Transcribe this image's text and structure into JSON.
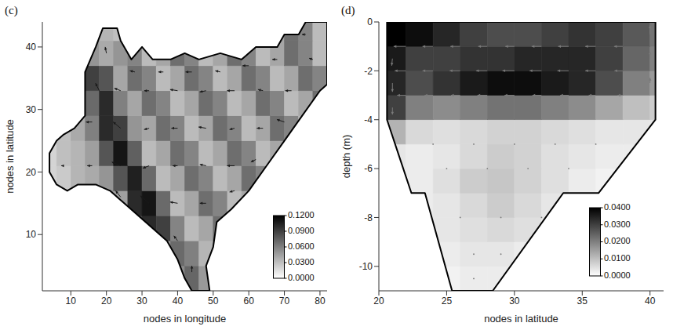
{
  "chart_data": [
    {
      "type": "heatmap",
      "title": "(c)",
      "xlabel": "nodes in longitude",
      "ylabel": "nodes in latitude",
      "xlim": [
        2,
        82
      ],
      "xticks": [
        10,
        20,
        30,
        40,
        50,
        60,
        70,
        80
      ],
      "ylim": [
        1,
        44
      ],
      "yticks": [
        10,
        20,
        30,
        40
      ],
      "boundary": {
        "x": [
          44,
          49,
          48,
          50,
          51,
          55,
          60,
          65,
          70,
          75,
          80,
          82,
          82,
          76,
          74,
          70,
          68,
          62,
          58,
          52,
          46,
          42,
          38,
          33,
          30,
          27,
          24,
          23,
          19,
          17,
          14,
          14,
          11,
          8,
          6,
          4,
          4,
          6,
          9,
          12,
          17,
          21,
          25,
          29,
          33,
          37,
          40,
          42
        ],
        "y": [
          1,
          1,
          5,
          8,
          12,
          14,
          17,
          21,
          25,
          29,
          33,
          34,
          44,
          44,
          42,
          42,
          40,
          40,
          38,
          39,
          38,
          39,
          38,
          38,
          40,
          38,
          41,
          43,
          43,
          40,
          36,
          29,
          27,
          26,
          25,
          23,
          20,
          18,
          17,
          18,
          18,
          17,
          15,
          13,
          11,
          9,
          6,
          3
        ]
      },
      "cells": {
        "x": [
          4,
          8,
          12,
          16,
          20,
          24,
          28,
          32,
          36,
          40,
          44,
          48,
          52,
          56,
          60,
          64,
          68,
          72,
          76,
          80
        ],
        "y": [
          3,
          7,
          11,
          15,
          19,
          23,
          27,
          31,
          35,
          39,
          43
        ],
        "values": [
          [
            null,
            null,
            null,
            null,
            null,
            null,
            null,
            null,
            null,
            0.055,
            0.072,
            0.048,
            null,
            null,
            null,
            null,
            null,
            null,
            null,
            null
          ],
          [
            null,
            null,
            null,
            null,
            null,
            null,
            null,
            null,
            0.045,
            0.07,
            0.06,
            0.035,
            0.05,
            null,
            null,
            null,
            null,
            null,
            null,
            null
          ],
          [
            null,
            null,
            null,
            null,
            null,
            null,
            0.08,
            0.1,
            0.09,
            0.058,
            0.032,
            0.042,
            0.068,
            null,
            null,
            null,
            null,
            null,
            null,
            null
          ],
          [
            null,
            null,
            null,
            null,
            0.058,
            0.045,
            0.1,
            0.11,
            0.07,
            0.032,
            0.042,
            0.068,
            0.058,
            0.032,
            0.042,
            null,
            null,
            null,
            null,
            null
          ],
          [
            0.02,
            0.025,
            0.035,
            0.04,
            0.05,
            0.08,
            0.105,
            0.07,
            0.032,
            0.042,
            0.068,
            0.058,
            0.032,
            0.042,
            0.068,
            0.058,
            null,
            null,
            null,
            null
          ],
          [
            0.02,
            0.03,
            0.035,
            0.045,
            0.08,
            0.11,
            0.075,
            0.032,
            0.042,
            0.068,
            0.058,
            0.032,
            0.042,
            0.068,
            0.058,
            0.032,
            0.042,
            null,
            null,
            null
          ],
          [
            null,
            0.03,
            0.04,
            0.06,
            0.1,
            0.09,
            0.05,
            0.042,
            0.068,
            0.058,
            0.032,
            0.042,
            0.068,
            0.058,
            0.032,
            0.042,
            0.068,
            0.058,
            0.032,
            null
          ],
          [
            null,
            null,
            null,
            0.07,
            0.1,
            0.06,
            0.042,
            0.068,
            0.058,
            0.032,
            0.042,
            0.068,
            0.058,
            0.032,
            0.042,
            0.068,
            0.058,
            0.032,
            0.042,
            0.068
          ],
          [
            null,
            null,
            null,
            0.09,
            0.08,
            0.042,
            0.068,
            0.058,
            0.032,
            0.042,
            0.068,
            0.058,
            0.032,
            0.042,
            0.068,
            0.058,
            0.032,
            0.042,
            0.068,
            0.058
          ],
          [
            null,
            null,
            null,
            0.05,
            0.04,
            0.05,
            0.058,
            0.032,
            0.042,
            0.068,
            0.058,
            0.032,
            0.042,
            0.068,
            0.058,
            0.032,
            0.042,
            0.068,
            0.058,
            0.032
          ],
          [
            null,
            null,
            null,
            null,
            0.035,
            0.03,
            null,
            null,
            null,
            null,
            null,
            null,
            null,
            null,
            null,
            null,
            0.042,
            0.068,
            0.058,
            0.032
          ]
        ]
      },
      "vectors": {
        "x": [
          44,
          40,
          24,
          32,
          40,
          48,
          56,
          8,
          16,
          24,
          32,
          40,
          48,
          56,
          62,
          16,
          24,
          32,
          40,
          48,
          56,
          64,
          70,
          18,
          24,
          32,
          40,
          48,
          56,
          64,
          72,
          20,
          28,
          36,
          44,
          52,
          60,
          68,
          78,
          76
        ],
        "y": [
          4,
          9,
          16,
          15,
          15,
          15,
          17,
          21,
          21,
          21,
          21,
          21,
          21,
          21,
          22,
          28,
          27,
          27,
          27,
          27,
          27,
          27,
          28,
          33,
          33,
          33,
          33,
          33,
          33,
          33,
          33,
          39,
          36,
          36,
          36,
          36,
          37,
          38,
          38,
          42
        ],
        "u": [
          0.0,
          -0.03,
          -0.04,
          -0.07,
          -0.06,
          -0.05,
          -0.04,
          -0.02,
          -0.04,
          -0.07,
          -0.05,
          -0.04,
          -0.05,
          -0.06,
          -0.04,
          -0.05,
          -0.06,
          -0.04,
          -0.05,
          -0.06,
          -0.04,
          -0.05,
          -0.06,
          -0.03,
          -0.05,
          -0.04,
          -0.06,
          -0.05,
          -0.06,
          -0.04,
          -0.05,
          -0.01,
          -0.04,
          -0.04,
          -0.05,
          -0.04,
          -0.05,
          -0.04,
          -0.03,
          -0.03
        ],
        "v": [
          0.05,
          0.04,
          0.05,
          0.06,
          0.01,
          0.0,
          -0.01,
          0.0,
          0.0,
          0.03,
          -0.02,
          0.0,
          0.01,
          0.0,
          -0.02,
          0.0,
          0.05,
          -0.01,
          0.0,
          0.01,
          -0.01,
          0.0,
          0.02,
          0.06,
          0.02,
          0.0,
          0.01,
          -0.01,
          0.0,
          0.01,
          0.0,
          0.05,
          0.01,
          0.0,
          0.0,
          0.01,
          0.0,
          0.0,
          0.01,
          0.0
        ]
      },
      "colorbar": {
        "range": [
          0,
          0.12
        ],
        "ticks": [
          {
            "value": 0,
            "label": "0.0000"
          },
          {
            "value": 0.03,
            "label": "0.0300"
          },
          {
            "value": 0.06,
            "label": "0.0600"
          },
          {
            "value": 0.09,
            "label": "0.0900"
          },
          {
            "value": 0.12,
            "label": "0.1200"
          }
        ]
      }
    },
    {
      "type": "heatmap",
      "title": "(d)",
      "xlabel": "nodes in latitude",
      "ylabel": "depth (m)",
      "xlim": [
        20,
        41
      ],
      "xticks": [
        20,
        25,
        30,
        35,
        40
      ],
      "ylim": [
        -11,
        0
      ],
      "yticks": [
        -10,
        -8,
        -6,
        -4,
        -2,
        0
      ],
      "boundary": {
        "x": [
          20.6,
          40.4,
          40.4,
          36.2,
          33.6,
          28.4,
          25.4,
          23.4,
          22.4,
          20.6
        ],
        "y": [
          0,
          0,
          -4,
          -7,
          -7,
          -11,
          -11,
          -7,
          -7,
          -4
        ]
      },
      "cells": {
        "x": [
          21,
          23,
          25,
          27,
          29,
          31,
          33,
          35,
          37,
          39,
          41
        ],
        "y": [
          -10.5,
          -9.5,
          -8.5,
          -7.5,
          -6.5,
          -5.5,
          -4.5,
          -3.5,
          -2.5,
          -1.5,
          -0.5
        ],
        "values": [
          [
            null,
            null,
            0.002,
            0.003,
            0.003,
            null,
            null,
            null,
            null,
            null,
            null
          ],
          [
            null,
            null,
            0.003,
            0.004,
            0.004,
            0.003,
            null,
            null,
            null,
            null,
            null
          ],
          [
            null,
            0.002,
            0.004,
            0.005,
            0.006,
            0.005,
            0.003,
            null,
            null,
            null,
            null
          ],
          [
            null,
            0.003,
            0.004,
            0.006,
            0.008,
            0.006,
            0.004,
            null,
            null,
            null,
            null
          ],
          [
            0.003,
            0.003,
            0.005,
            0.008,
            0.009,
            0.007,
            0.005,
            0.003,
            0.002,
            null,
            null
          ],
          [
            0.004,
            0.003,
            0.004,
            0.006,
            0.008,
            0.007,
            0.005,
            0.004,
            0.003,
            0.003,
            null
          ],
          [
            0.012,
            0.006,
            0.005,
            0.006,
            0.007,
            0.007,
            0.006,
            0.005,
            0.004,
            0.004,
            0.004
          ],
          [
            0.03,
            0.02,
            0.018,
            0.02,
            0.022,
            0.022,
            0.02,
            0.018,
            0.014,
            0.01,
            0.008
          ],
          [
            0.034,
            0.028,
            0.032,
            0.036,
            0.038,
            0.038,
            0.036,
            0.034,
            0.028,
            0.02,
            0.016
          ],
          [
            0.036,
            0.03,
            0.03,
            0.032,
            0.032,
            0.034,
            0.034,
            0.034,
            0.03,
            0.024,
            0.02
          ],
          [
            0.04,
            0.038,
            0.034,
            0.03,
            0.028,
            0.028,
            0.03,
            0.032,
            0.03,
            0.026,
            0.022
          ]
        ]
      },
      "vectors": {
        "x": [
          22,
          24,
          26,
          28,
          30,
          32,
          34,
          36,
          38,
          22,
          24,
          26,
          28,
          30,
          32,
          34,
          36,
          38,
          22,
          24,
          26,
          28,
          30,
          32,
          34,
          36,
          38,
          21,
          21,
          21,
          40,
          40,
          40,
          24,
          27,
          30,
          33,
          36,
          25,
          28,
          31,
          34,
          26,
          29,
          32,
          27,
          29,
          27
        ],
        "y": [
          -1,
          -1,
          -1,
          -1,
          -1,
          -1,
          -1,
          -1,
          -1,
          -2,
          -2,
          -2,
          -2,
          -2,
          -2,
          -2,
          -2,
          -2,
          -3,
          -3,
          -3,
          -3,
          -3,
          -3,
          -3,
          -3,
          -3,
          -1.5,
          -2.5,
          -3.5,
          -0.5,
          -1.5,
          -2.5,
          -5,
          -5,
          -5,
          -5,
          -5,
          -6,
          -6,
          -6,
          -6,
          -8,
          -8,
          -8,
          -9.5,
          -9.5,
          -10.5
        ],
        "u": [
          -0.035,
          -0.03,
          -0.028,
          -0.026,
          -0.026,
          -0.028,
          -0.03,
          -0.03,
          -0.025,
          -0.032,
          -0.03,
          -0.03,
          -0.032,
          -0.034,
          -0.034,
          -0.032,
          -0.03,
          -0.024,
          -0.025,
          -0.024,
          -0.026,
          -0.028,
          -0.028,
          -0.026,
          -0.024,
          -0.02,
          -0.015,
          -0.002,
          0.0,
          0.0,
          0.0,
          0.0,
          0.0,
          0.001,
          0.001,
          0.001,
          0.0,
          0.0,
          0.0,
          0.001,
          0.0,
          0.0,
          0.0,
          0.0,
          0.0,
          0.0,
          0.0,
          0.0
        ],
        "v": [
          0,
          0,
          0,
          0,
          0,
          0,
          0,
          0,
          0,
          0,
          0,
          0,
          0,
          0,
          0,
          0,
          0,
          0,
          0,
          0,
          0,
          0,
          0,
          0,
          0,
          0,
          0,
          -0.02,
          -0.025,
          -0.02,
          0.025,
          0.02,
          0.015,
          -0.001,
          0.0,
          -0.001,
          -0.001,
          0.001,
          -0.002,
          -0.001,
          -0.002,
          0.001,
          -0.002,
          -0.003,
          0.002,
          -0.002,
          0.002,
          -0.001
        ]
      },
      "colorbar": {
        "range": [
          0,
          0.04
        ],
        "ticks": [
          {
            "value": 0,
            "label": "0.0000"
          },
          {
            "value": 0.01,
            "label": "0.0100"
          },
          {
            "value": 0.02,
            "label": "0.0200"
          },
          {
            "value": 0.03,
            "label": "0.0300"
          },
          {
            "value": 0.04,
            "label": "0.0400"
          }
        ]
      }
    }
  ]
}
